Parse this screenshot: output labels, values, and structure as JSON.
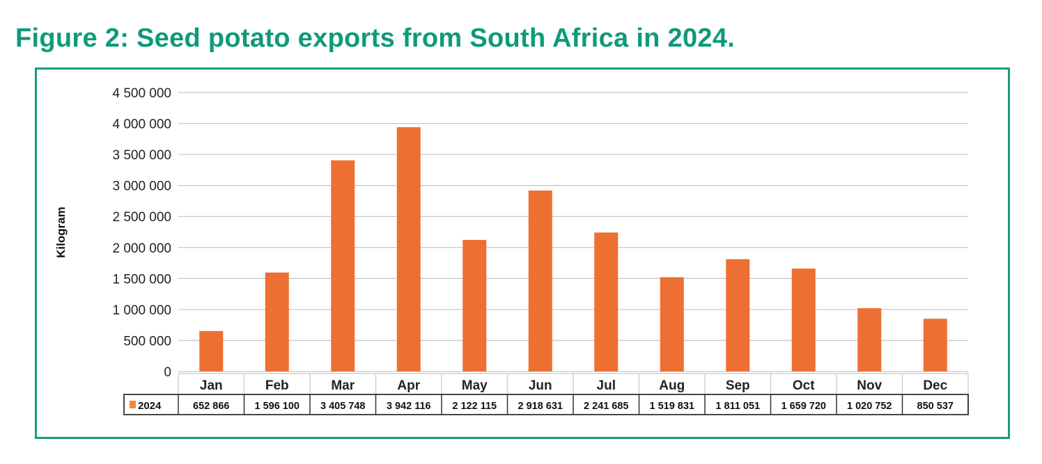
{
  "title": "Figure 2: Seed potato exports from South Africa in 2024.",
  "chart_data": {
    "type": "bar",
    "title": "Figure 2: Seed potato exports from South Africa in 2024.",
    "xlabel": "",
    "ylabel": "Kilogram",
    "ylim": [
      0,
      4500000
    ],
    "yticks": [
      0,
      500000,
      1000000,
      1500000,
      2000000,
      2500000,
      3000000,
      3500000,
      4000000,
      4500000
    ],
    "ytick_labels": [
      "0",
      "500 000",
      "1 000 000",
      "1 500 000",
      "2 000 000",
      "2 500 000",
      "3 000 000",
      "3 500 000",
      "4 000 000",
      "4 500 000"
    ],
    "grid": true,
    "categories": [
      "Jan",
      "Feb",
      "Mar",
      "Apr",
      "May",
      "Jun",
      "Jul",
      "Aug",
      "Sep",
      "Oct",
      "Nov",
      "Dec"
    ],
    "series": [
      {
        "name": "2024",
        "color": "#ed7032",
        "values": [
          652866,
          1596100,
          3405748,
          3942116,
          2122115,
          2918631,
          2241685,
          1519831,
          1811051,
          1659720,
          1020752,
          850537
        ],
        "value_labels": [
          "652 866",
          "1 596 100",
          "3 405 748",
          "3 942 116",
          "2 122 115",
          "2 918 631",
          "2 241 685",
          "1 519 831",
          "1 811 051",
          "1 659 720",
          "1 020 752",
          "850 537"
        ]
      }
    ],
    "legend": "data-table"
  }
}
